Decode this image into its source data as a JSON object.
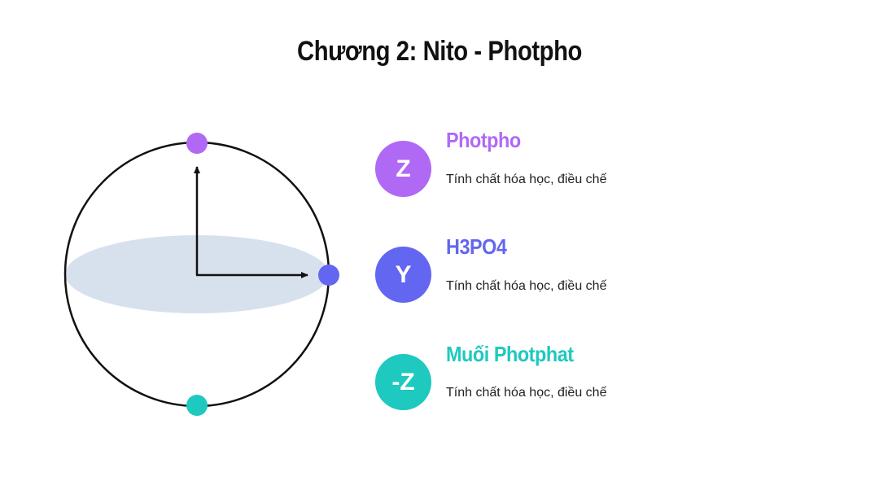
{
  "title": "Chương 2: Nito - Photpho",
  "colors": {
    "purple": "#b069f5",
    "indigo": "#6266f0",
    "teal": "#1ec9bf",
    "ellipse_fill": "#d7e1ee",
    "outline": "#111111"
  },
  "items": [
    {
      "badge": "Z",
      "title": "Photpho",
      "description": "Tính chất hóa học, điều chế",
      "color": "#b069f5"
    },
    {
      "badge": "Y",
      "title": "H3PO4",
      "description": "Tính chất hóa học, điều chế",
      "color": "#6266f0"
    },
    {
      "badge": "-Z",
      "title": "Muối Photphat",
      "description": "Tính chất hóa học, điều chế",
      "color": "#1ec9bf"
    }
  ]
}
